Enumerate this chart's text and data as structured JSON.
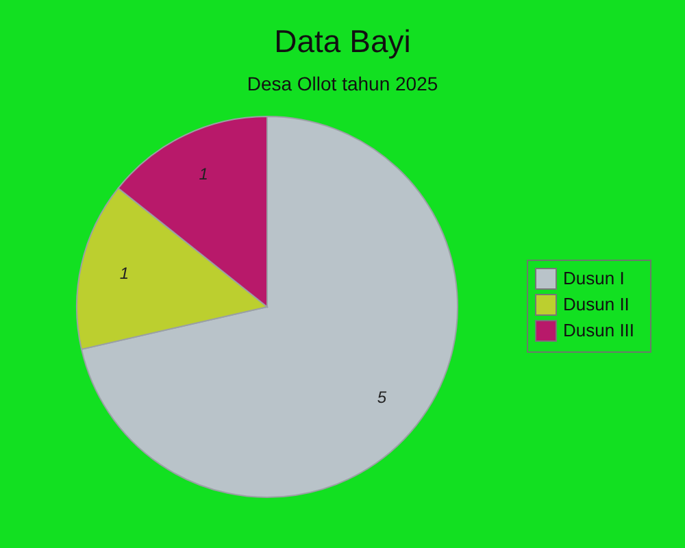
{
  "chart_data": {
    "type": "pie",
    "title": "Data Bayi",
    "subtitle": "Desa Ollot tahun 2025",
    "categories": [
      "Dusun I",
      "Dusun II",
      "Dusun III"
    ],
    "values": [
      5,
      1,
      1
    ],
    "colors": [
      "#b9c3c9",
      "#bccf2f",
      "#b8196a"
    ],
    "data_labels": true,
    "legend": "right"
  }
}
